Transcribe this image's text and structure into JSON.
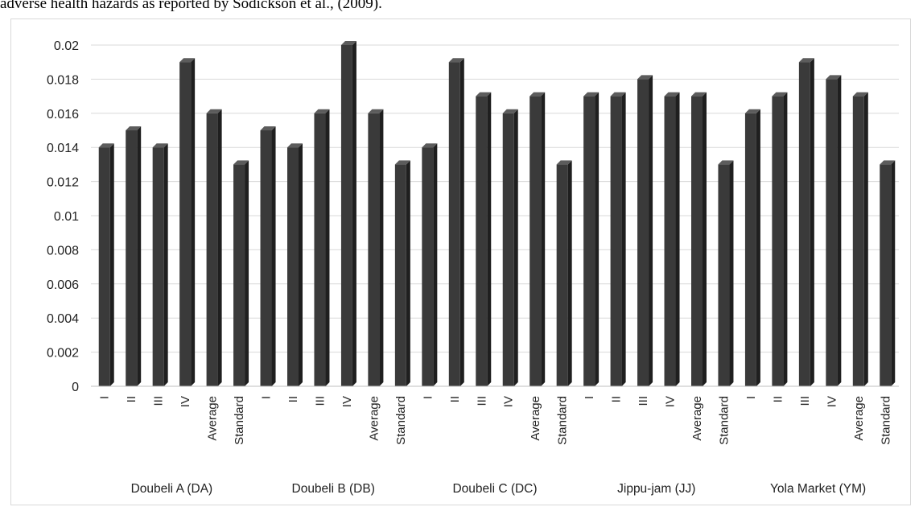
{
  "caption": "adverse health hazards as reported by Sodickson et al., (2009).",
  "chart_data": {
    "type": "bar",
    "ylim": [
      0,
      0.02
    ],
    "yticks": [
      "0",
      "0.002",
      "0.004",
      "0.006",
      "0.008",
      "0.01",
      "0.012",
      "0.014",
      "0.016",
      "0.018",
      "0.02"
    ],
    "grid": true,
    "bar_color": "#3a3a3a",
    "groups": [
      {
        "name": "Doubeli A (DA)",
        "categories": [
          "I",
          "II",
          "III",
          "IV",
          "Average",
          "Standard"
        ],
        "values": [
          0.014,
          0.015,
          0.014,
          0.019,
          0.016,
          0.013
        ]
      },
      {
        "name": "Doubeli B (DB)",
        "categories": [
          "I",
          "II",
          "III",
          "IV",
          "Average",
          "Standard"
        ],
        "values": [
          0.015,
          0.014,
          0.016,
          0.02,
          0.016,
          0.013
        ]
      },
      {
        "name": "Doubeli C (DC)",
        "categories": [
          "I",
          "II",
          "III",
          "IV",
          "Average",
          "Standard"
        ],
        "values": [
          0.014,
          0.019,
          0.017,
          0.016,
          0.017,
          0.013
        ]
      },
      {
        "name": "Jippu-jam (JJ)",
        "categories": [
          "I",
          "II",
          "III",
          "IV",
          "Average",
          "Standard"
        ],
        "values": [
          0.017,
          0.017,
          0.018,
          0.017,
          0.017,
          0.013
        ]
      },
      {
        "name": "Yola Market (YM)",
        "categories": [
          "I",
          "II",
          "III",
          "IV",
          "Average",
          "Standard"
        ],
        "values": [
          0.016,
          0.017,
          0.019,
          0.018,
          0.017,
          0.013
        ]
      }
    ]
  }
}
